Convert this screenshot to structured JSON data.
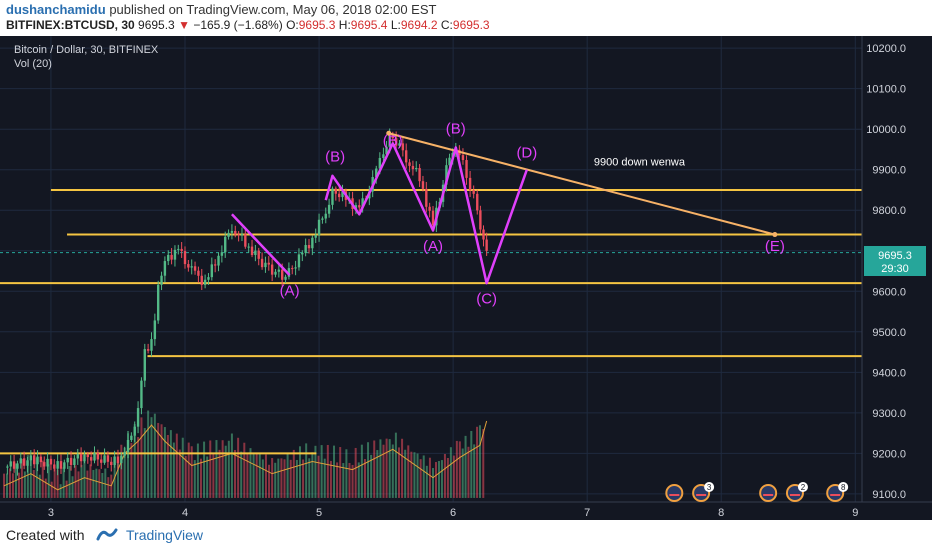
{
  "header": {
    "author": "dushanchamidu",
    "published_text": "published on TradingView.com, May 06, 2018 02:00 EST",
    "symbol": "BITFINEX:BTCUSD, 30",
    "last_price": "9695.3",
    "change_arrow": "▼",
    "change": "−165.9 (−1.68%)",
    "open_label": "O:",
    "open": "9695.3",
    "high_label": "H:",
    "high": "9695.4",
    "low_label": "L:",
    "low": "9694.2",
    "close_label": "C:",
    "close": "9695.3"
  },
  "legend": {
    "title": "Bitcoin / Dollar, 30, BITFINEX",
    "vol": "Vol (20)"
  },
  "footer": {
    "created_with": "Created with",
    "brand": "TradingView"
  },
  "colors": {
    "background": "#131722",
    "grid": "#1f2a3f",
    "up": "#53b987",
    "down": "#eb4d5c",
    "level": "#f5c542",
    "pattern": "#e040fb",
    "trendline": "#f7b267",
    "price_tag": "#26a69a"
  },
  "chart_data": {
    "type": "candlestick",
    "symbol": "BITFINEX:BTCUSD",
    "interval": "30",
    "xlabel": "",
    "ylabel": "",
    "x_ticks": [
      "3",
      "4",
      "5",
      "6",
      "7",
      "8",
      "9"
    ],
    "y_ticks": [
      "9100.0",
      "9200.0",
      "9300.0",
      "9400.0",
      "9500.0",
      "9600.0",
      "9700.0",
      "9800.0",
      "9900.0",
      "10000.0",
      "10100.0",
      "10200.0"
    ],
    "ylim": [
      9080,
      10230
    ],
    "xlim": [
      2.62,
      9.05
    ],
    "grid": true,
    "current_price": "9695.3",
    "countdown": "29:30",
    "price_path": [
      [
        2.65,
        9165
      ],
      [
        2.85,
        9185
      ],
      [
        3.05,
        9170
      ],
      [
        3.25,
        9195
      ],
      [
        3.45,
        9180
      ],
      [
        3.55,
        9195
      ],
      [
        3.65,
        9300
      ],
      [
        3.7,
        9450
      ],
      [
        3.75,
        9470
      ],
      [
        3.8,
        9610
      ],
      [
        3.85,
        9680
      ],
      [
        3.95,
        9700
      ],
      [
        4.05,
        9650
      ],
      [
        4.15,
        9620
      ],
      [
        4.25,
        9690
      ],
      [
        4.35,
        9760
      ],
      [
        4.45,
        9720
      ],
      [
        4.6,
        9660
      ],
      [
        4.75,
        9635
      ],
      [
        4.85,
        9680
      ],
      [
        4.95,
        9730
      ],
      [
        5.05,
        9800
      ],
      [
        5.1,
        9850
      ],
      [
        5.2,
        9830
      ],
      [
        5.3,
        9800
      ],
      [
        5.4,
        9870
      ],
      [
        5.48,
        9950
      ],
      [
        5.55,
        9985
      ],
      [
        5.65,
        9930
      ],
      [
        5.75,
        9880
      ],
      [
        5.85,
        9760
      ],
      [
        5.95,
        9900
      ],
      [
        6.02,
        9960
      ],
      [
        6.1,
        9890
      ],
      [
        6.18,
        9800
      ],
      [
        6.25,
        9690
      ]
    ],
    "volume_profile": [
      [
        2.65,
        9150
      ],
      [
        2.85,
        9180
      ],
      [
        3.05,
        9140
      ],
      [
        3.25,
        9170
      ],
      [
        3.45,
        9150
      ],
      [
        3.55,
        9230
      ],
      [
        3.65,
        9260
      ],
      [
        3.75,
        9300
      ],
      [
        3.85,
        9260
      ],
      [
        4.05,
        9200
      ],
      [
        4.35,
        9230
      ],
      [
        4.65,
        9180
      ],
      [
        4.95,
        9210
      ],
      [
        5.25,
        9190
      ],
      [
        5.55,
        9240
      ],
      [
        5.85,
        9170
      ],
      [
        6.05,
        9220
      ],
      [
        6.2,
        9250
      ],
      [
        6.25,
        9310
      ]
    ],
    "horizontal_levels": [
      {
        "price": 9850,
        "x_start": 3.0,
        "x_end": 9.05
      },
      {
        "price": 9740,
        "x_start": 3.12,
        "x_end": 9.05
      },
      {
        "price": 9620,
        "x_start": 2.62,
        "x_end": 9.05
      },
      {
        "price": 9440,
        "x_start": 3.72,
        "x_end": 9.05
      },
      {
        "price": 9200,
        "x_start": 2.62,
        "x_end": 4.98
      }
    ],
    "trendline": [
      [
        5.52,
        9990
      ],
      [
        8.4,
        9740
      ]
    ],
    "pattern_lines": [
      [
        [
          4.35,
          9790
        ],
        [
          4.78,
          9640
        ]
      ],
      [
        [
          5.05,
          9825
        ],
        [
          5.1,
          9885
        ],
        [
          5.3,
          9790
        ],
        [
          5.55,
          9965
        ],
        [
          5.85,
          9750
        ],
        [
          6.02,
          9955
        ],
        [
          6.25,
          9620
        ],
        [
          6.55,
          9900
        ]
      ]
    ],
    "annotations": [
      {
        "text": "(A)",
        "x": 4.78,
        "y": 9590
      },
      {
        "text": "(B)",
        "x": 5.12,
        "y": 9920
      },
      {
        "text": "(B)",
        "x": 5.55,
        "y": 9960
      },
      {
        "text": "(D)",
        "x": 6.55,
        "y": 9930
      },
      {
        "text": "(A)",
        "x": 5.85,
        "y": 9700
      },
      {
        "text": "(B)",
        "x": 6.02,
        "y": 9990
      },
      {
        "text": "(C)",
        "x": 6.25,
        "y": 9570
      },
      {
        "text": "(E)",
        "x": 8.4,
        "y": 9700
      },
      {
        "text": "9900 down wenwa",
        "x": 7.05,
        "y": 9910
      }
    ],
    "event_badges": [
      {
        "x": 7.65,
        "count": ""
      },
      {
        "x": 7.85,
        "count": "3"
      },
      {
        "x": 8.35,
        "count": ""
      },
      {
        "x": 8.55,
        "count": "2"
      },
      {
        "x": 8.85,
        "count": "8"
      }
    ]
  }
}
